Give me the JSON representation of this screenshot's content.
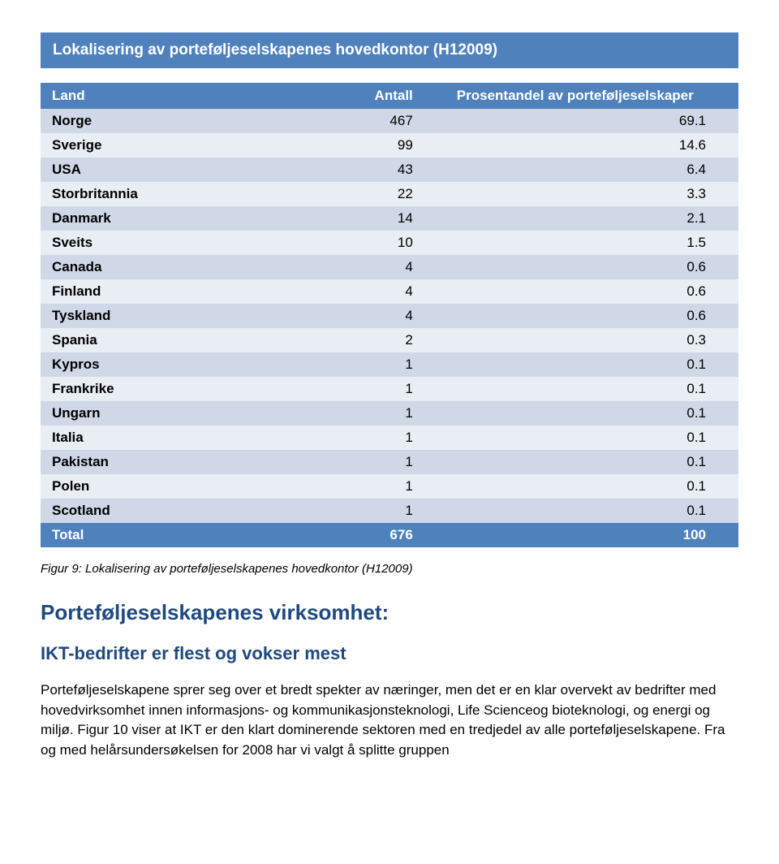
{
  "table": {
    "title": "Lokalisering av porteføljeselskapenes hovedkontor (H12009)",
    "columns": {
      "land": "Land",
      "antall": "Antall",
      "pct": "Prosentandel av porteføljeselskaper"
    },
    "header_bg": "#4f81bd",
    "header_fg": "#ffffff",
    "row_bg_odd": "#d0d8e8",
    "row_bg_even": "#e9edf4",
    "rows": [
      {
        "land": "Norge",
        "antall": "467",
        "pct": "69.1"
      },
      {
        "land": "Sverige",
        "antall": "99",
        "pct": "14.6"
      },
      {
        "land": "USA",
        "antall": "43",
        "pct": "6.4"
      },
      {
        "land": "Storbritannia",
        "antall": "22",
        "pct": "3.3"
      },
      {
        "land": "Danmark",
        "antall": "14",
        "pct": "2.1"
      },
      {
        "land": "Sveits",
        "antall": "10",
        "pct": "1.5"
      },
      {
        "land": "Canada",
        "antall": "4",
        "pct": "0.6"
      },
      {
        "land": "Finland",
        "antall": "4",
        "pct": "0.6"
      },
      {
        "land": "Tyskland",
        "antall": "4",
        "pct": "0.6"
      },
      {
        "land": "Spania",
        "antall": "2",
        "pct": "0.3"
      },
      {
        "land": "Kypros",
        "antall": "1",
        "pct": "0.1"
      },
      {
        "land": "Frankrike",
        "antall": "1",
        "pct": "0.1"
      },
      {
        "land": "Ungarn",
        "antall": "1",
        "pct": "0.1"
      },
      {
        "land": "Italia",
        "antall": "1",
        "pct": "0.1"
      },
      {
        "land": "Pakistan",
        "antall": "1",
        "pct": "0.1"
      },
      {
        "land": "Polen",
        "antall": "1",
        "pct": "0.1"
      },
      {
        "land": "Scotland",
        "antall": "1",
        "pct": "0.1"
      }
    ],
    "total": {
      "label": "Total",
      "antall": "676",
      "pct": "100"
    }
  },
  "caption": "Figur 9: Lokalisering av porteføljeselskapenes hovedkontor (H12009)",
  "section_heading": "Porteføljeselskapenes virksomhet:",
  "subheading": "IKT-bedrifter er flest og vokser mest",
  "paragraph": "Porteføljeselskapene sprer seg over et bredt spekter av næringer, men det er en klar overvekt av bedrifter med hovedvirksomhet innen informasjons- og kommunikasjonsteknologi, Life Scienceog bioteknologi, og energi og miljø. Figur 10 viser at IKT er den klart dominerende sektoren med en tredjedel av alle porteføljeselskapene. Fra og med helårsundersøkelsen for 2008 har vi valgt å splitte gruppen"
}
